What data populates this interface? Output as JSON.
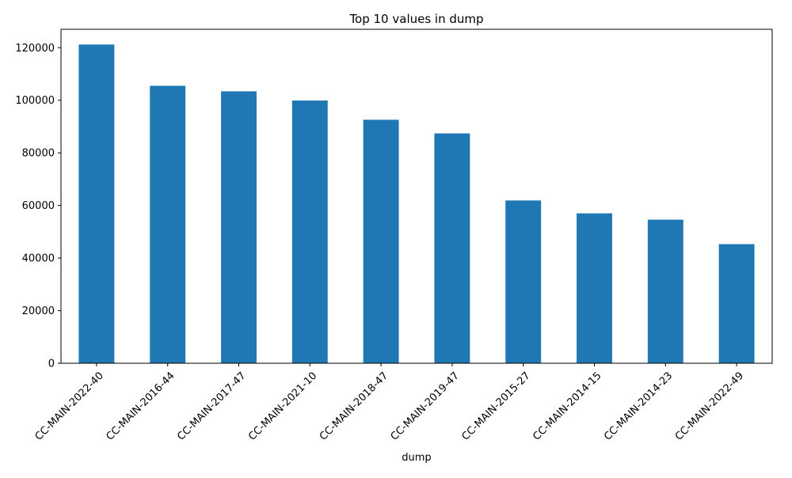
{
  "chart_data": {
    "type": "bar",
    "title": "Top 10 values in dump",
    "xlabel": "dump",
    "ylabel": "",
    "categories": [
      "CC-MAIN-2022-40",
      "CC-MAIN-2016-44",
      "CC-MAIN-2017-47",
      "CC-MAIN-2021-10",
      "CC-MAIN-2018-47",
      "CC-MAIN-2019-47",
      "CC-MAIN-2015-27",
      "CC-MAIN-2014-15",
      "CC-MAIN-2014-23",
      "CC-MAIN-2022-49"
    ],
    "values": [
      121200,
      105500,
      103400,
      99900,
      92600,
      87400,
      61900,
      57000,
      54600,
      45300
    ],
    "ylim": [
      0,
      127000
    ],
    "yticks": [
      0,
      20000,
      40000,
      60000,
      80000,
      100000,
      120000
    ],
    "bar_color": "#1f77b4",
    "grid": false,
    "legend": "none"
  }
}
